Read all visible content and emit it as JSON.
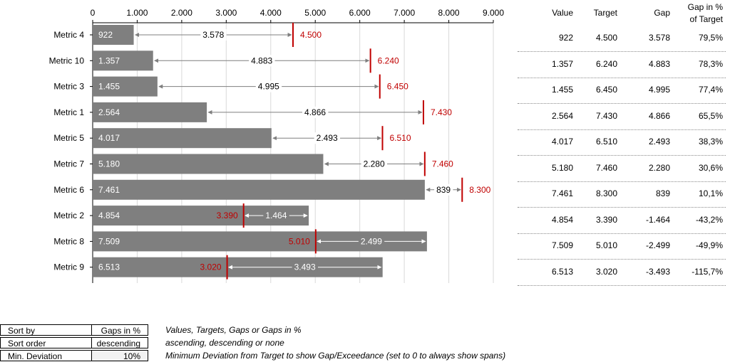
{
  "chart_data": {
    "type": "bar",
    "orientation": "horizontal",
    "xlim": [
      0,
      9000
    ],
    "x_ticks": [
      0,
      1000,
      2000,
      3000,
      4000,
      5000,
      6000,
      7000,
      8000,
      9000
    ],
    "x_tick_labels": [
      "0",
      "1.000",
      "2.000",
      "3.000",
      "4.000",
      "5.000",
      "6.000",
      "7.000",
      "8.000",
      "9.000"
    ],
    "x_axis_position": "top",
    "grid": true,
    "categories": [
      "Metric 4",
      "Metric 10",
      "Metric 3",
      "Metric 1",
      "Metric 5",
      "Metric 7",
      "Metric 6",
      "Metric 2",
      "Metric 8",
      "Metric 9"
    ],
    "values": [
      922,
      1357,
      1455,
      2564,
      4017,
      5180,
      7461,
      4854,
      7509,
      6513
    ],
    "value_labels": [
      "922",
      "1.357",
      "1.455",
      "2.564",
      "4.017",
      "5.180",
      "7.461",
      "4.854",
      "7.509",
      "6.513"
    ],
    "targets": [
      4500,
      6240,
      6450,
      7430,
      6510,
      7460,
      8300,
      3390,
      5010,
      3020
    ],
    "target_labels": [
      "4.500",
      "6.240",
      "6.450",
      "7.430",
      "6.510",
      "7.460",
      "8.300",
      "3.390",
      "5.010",
      "3.020"
    ],
    "gaps": [
      3578,
      4883,
      4995,
      4866,
      2493,
      2280,
      839,
      -1464,
      -2499,
      -3493
    ],
    "gap_labels": [
      "3.578",
      "4.883",
      "4.995",
      "4.866",
      "2.493",
      "2.280",
      "839",
      "1.464",
      "2.499",
      "3.493"
    ],
    "bar_color": "#7f7f7f",
    "target_color": "#c00000",
    "span_color": "#7f7f7f"
  },
  "table": {
    "headers": [
      "Value",
      "Target",
      "Gap",
      "Gap in %",
      "of Target"
    ],
    "rows": [
      [
        "922",
        "4.500",
        "3.578",
        "79,5%"
      ],
      [
        "1.357",
        "6.240",
        "4.883",
        "78,3%"
      ],
      [
        "1.455",
        "6.450",
        "4.995",
        "77,4%"
      ],
      [
        "2.564",
        "7.430",
        "4.866",
        "65,5%"
      ],
      [
        "4.017",
        "6.510",
        "2.493",
        "38,3%"
      ],
      [
        "5.180",
        "7.460",
        "2.280",
        "30,6%"
      ],
      [
        "7.461",
        "8.300",
        "839",
        "10,1%"
      ],
      [
        "4.854",
        "3.390",
        "-1.464",
        "-43,2%"
      ],
      [
        "7.509",
        "5.010",
        "-2.499",
        "-49,9%"
      ],
      [
        "6.513",
        "3.020",
        "-3.493",
        "-115,7%"
      ]
    ]
  },
  "settings": [
    {
      "label": "Sort by",
      "value": "Gaps in %",
      "note": "Values, Targets, Gaps or Gaps in %"
    },
    {
      "label": "Sort order",
      "value": "descending",
      "note": "ascending, descending or none"
    },
    {
      "label": "Min. Deviation",
      "value": "10%",
      "note": "Minimum Deviation from Target to show Gap/Exceedance (set to 0 to always show spans)"
    }
  ]
}
